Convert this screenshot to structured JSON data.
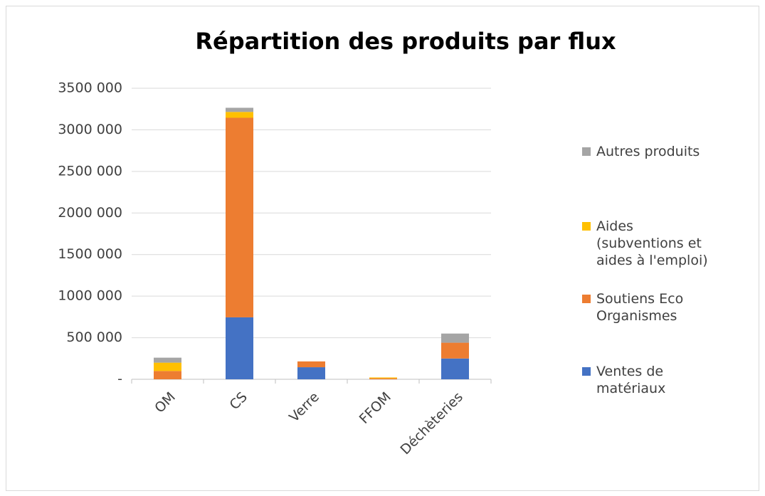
{
  "chart_data": {
    "type": "stacked_bar",
    "title": "Répartition des produits par flux",
    "categories": [
      "OM",
      "CS",
      "Verre",
      "FFOM",
      "Déchèteries"
    ],
    "series": [
      {
        "name": "Ventes de matériaux",
        "color": "#4472c4",
        "values": [
          0,
          745000,
          145000,
          0,
          250000
        ]
      },
      {
        "name": "Soutiens Eco Organismes",
        "color": "#ed7d31",
        "values": [
          100000,
          2400000,
          70000,
          12000,
          190000
        ]
      },
      {
        "name": "Aides (subventions et aides à l'emploi)",
        "color": "#ffc000",
        "values": [
          100000,
          70000,
          0,
          10000,
          0
        ]
      },
      {
        "name": "Autres produits",
        "color": "#a5a5a5",
        "values": [
          60000,
          50000,
          0,
          0,
          110000
        ]
      }
    ],
    "ylim": [
      0,
      3500000
    ],
    "yticks": [
      {
        "value": 0,
        "label": "-"
      },
      {
        "value": 500000,
        "label": "500 000"
      },
      {
        "value": 1000000,
        "label": "1000 000"
      },
      {
        "value": 1500000,
        "label": "1500 000"
      },
      {
        "value": 2000000,
        "label": "2000 000"
      },
      {
        "value": 2500000,
        "label": "2500 000"
      },
      {
        "value": 3000000,
        "label": "3000 000"
      },
      {
        "value": 3500000,
        "label": "3500 000"
      }
    ],
    "grid": true,
    "legend": "right"
  }
}
